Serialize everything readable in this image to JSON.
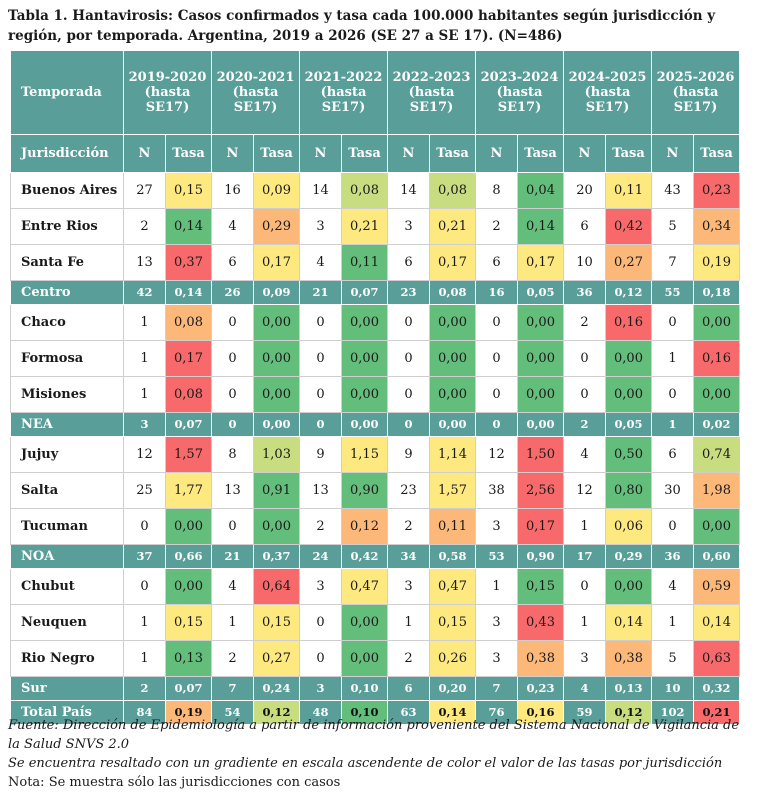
{
  "title": "Tabla 1. Hantavirosis: Casos confirmados y tasa cada 100.000 habitantes según jurisdicción y región, por temporada. Argentina, 2019 a 2026 (SE 27 a SE 17). (N=486)",
  "header": {
    "temporada_label": "Temporada",
    "seasons": [
      "2019-2020 (hasta SE17)",
      "2020-2021 (hasta SE17)",
      "2021-2022 (hasta SE17)",
      "2022-2023 (hasta SE17)",
      "2023-2024 (hasta SE17)",
      "2024-2025 (hasta SE17)",
      "2025-2026 (hasta SE17)"
    ],
    "jurisdiccion_label": "Jurisdicción",
    "n_label": "N",
    "tasa_label": "Tasa"
  },
  "colors": {
    "header_teal": "#5a9e9a",
    "scale_green": "#63be7b",
    "scale_lightgreen": "#c8dd7f",
    "scale_yellow": "#fde980",
    "scale_orange": "#fbb878",
    "scale_red": "#f8696b"
  },
  "rows": [
    {
      "type": "juris",
      "name": "Buenos Aires",
      "cells": [
        [
          "27",
          "0,15",
          "yellow"
        ],
        [
          "16",
          "0,09",
          "yellow"
        ],
        [
          "14",
          "0,08",
          "lightgreen"
        ],
        [
          "14",
          "0,08",
          "lightgreen"
        ],
        [
          "8",
          "0,04",
          "green"
        ],
        [
          "20",
          "0,11",
          "yellow"
        ],
        [
          "43",
          "0,23",
          "red"
        ]
      ]
    },
    {
      "type": "juris",
      "name": "Entre Rios",
      "cells": [
        [
          "2",
          "0,14",
          "green"
        ],
        [
          "4",
          "0,29",
          "orange"
        ],
        [
          "3",
          "0,21",
          "yellow"
        ],
        [
          "3",
          "0,21",
          "yellow"
        ],
        [
          "2",
          "0,14",
          "green"
        ],
        [
          "6",
          "0,42",
          "red"
        ],
        [
          "5",
          "0,34",
          "orange"
        ]
      ]
    },
    {
      "type": "juris",
      "name": "Santa Fe",
      "cells": [
        [
          "13",
          "0,37",
          "red"
        ],
        [
          "6",
          "0,17",
          "yellow"
        ],
        [
          "4",
          "0,11",
          "green"
        ],
        [
          "6",
          "0,17",
          "yellow"
        ],
        [
          "6",
          "0,17",
          "yellow"
        ],
        [
          "10",
          "0,27",
          "orange"
        ],
        [
          "7",
          "0,19",
          "yellow"
        ]
      ]
    },
    {
      "type": "region",
      "name": "Centro",
      "cells": [
        [
          "42",
          "0,14"
        ],
        [
          "26",
          "0,09"
        ],
        [
          "21",
          "0,07"
        ],
        [
          "23",
          "0,08"
        ],
        [
          "16",
          "0,05"
        ],
        [
          "36",
          "0,12"
        ],
        [
          "55",
          "0,18"
        ]
      ]
    },
    {
      "type": "juris",
      "name": "Chaco",
      "cells": [
        [
          "1",
          "0,08",
          "orange"
        ],
        [
          "0",
          "0,00",
          "green"
        ],
        [
          "0",
          "0,00",
          "green"
        ],
        [
          "0",
          "0,00",
          "green"
        ],
        [
          "0",
          "0,00",
          "green"
        ],
        [
          "2",
          "0,16",
          "red"
        ],
        [
          "0",
          "0,00",
          "green"
        ]
      ]
    },
    {
      "type": "juris",
      "name": "Formosa",
      "cells": [
        [
          "1",
          "0,17",
          "red"
        ],
        [
          "0",
          "0,00",
          "green"
        ],
        [
          "0",
          "0,00",
          "green"
        ],
        [
          "0",
          "0,00",
          "green"
        ],
        [
          "0",
          "0,00",
          "green"
        ],
        [
          "0",
          "0,00",
          "green"
        ],
        [
          "1",
          "0,16",
          "red"
        ]
      ]
    },
    {
      "type": "juris",
      "name": "Misiones",
      "cells": [
        [
          "1",
          "0,08",
          "red"
        ],
        [
          "0",
          "0,00",
          "green"
        ],
        [
          "0",
          "0,00",
          "green"
        ],
        [
          "0",
          "0,00",
          "green"
        ],
        [
          "0",
          "0,00",
          "green"
        ],
        [
          "0",
          "0,00",
          "green"
        ],
        [
          "0",
          "0,00",
          "green"
        ]
      ]
    },
    {
      "type": "region",
      "name": "NEA",
      "cells": [
        [
          "3",
          "0,07"
        ],
        [
          "0",
          "0,00"
        ],
        [
          "0",
          "0,00"
        ],
        [
          "0",
          "0,00"
        ],
        [
          "0",
          "0,00"
        ],
        [
          "2",
          "0,05"
        ],
        [
          "1",
          "0,02"
        ]
      ]
    },
    {
      "type": "juris",
      "name": "Jujuy",
      "cells": [
        [
          "12",
          "1,57",
          "red"
        ],
        [
          "8",
          "1,03",
          "lightgreen"
        ],
        [
          "9",
          "1,15",
          "yellow"
        ],
        [
          "9",
          "1,14",
          "yellow"
        ],
        [
          "12",
          "1,50",
          "red"
        ],
        [
          "4",
          "0,50",
          "green"
        ],
        [
          "6",
          "0,74",
          "lightgreen"
        ]
      ]
    },
    {
      "type": "juris",
      "name": "Salta",
      "cells": [
        [
          "25",
          "1,77",
          "yellow"
        ],
        [
          "13",
          "0,91",
          "green"
        ],
        [
          "13",
          "0,90",
          "green"
        ],
        [
          "23",
          "1,57",
          "yellow"
        ],
        [
          "38",
          "2,56",
          "red"
        ],
        [
          "12",
          "0,80",
          "green"
        ],
        [
          "30",
          "1,98",
          "orange"
        ]
      ]
    },
    {
      "type": "juris",
      "name": "Tucuman",
      "cells": [
        [
          "0",
          "0,00",
          "green"
        ],
        [
          "0",
          "0,00",
          "green"
        ],
        [
          "2",
          "0,12",
          "orange"
        ],
        [
          "2",
          "0,11",
          "orange"
        ],
        [
          "3",
          "0,17",
          "red"
        ],
        [
          "1",
          "0,06",
          "yellow"
        ],
        [
          "0",
          "0,00",
          "green"
        ]
      ]
    },
    {
      "type": "region",
      "name": "NOA",
      "cells": [
        [
          "37",
          "0,66"
        ],
        [
          "21",
          "0,37"
        ],
        [
          "24",
          "0,42"
        ],
        [
          "34",
          "0,58"
        ],
        [
          "53",
          "0,90"
        ],
        [
          "17",
          "0,29"
        ],
        [
          "36",
          "0,60"
        ]
      ]
    },
    {
      "type": "juris",
      "name": "Chubut",
      "cells": [
        [
          "0",
          "0,00",
          "green"
        ],
        [
          "4",
          "0,64",
          "red"
        ],
        [
          "3",
          "0,47",
          "yellow"
        ],
        [
          "3",
          "0,47",
          "yellow"
        ],
        [
          "1",
          "0,15",
          "green"
        ],
        [
          "0",
          "0,00",
          "green"
        ],
        [
          "4",
          "0,59",
          "orange"
        ]
      ]
    },
    {
      "type": "juris",
      "name": "Neuquen",
      "cells": [
        [
          "1",
          "0,15",
          "yellow"
        ],
        [
          "1",
          "0,15",
          "yellow"
        ],
        [
          "0",
          "0,00",
          "green"
        ],
        [
          "1",
          "0,15",
          "yellow"
        ],
        [
          "3",
          "0,43",
          "red"
        ],
        [
          "1",
          "0,14",
          "yellow"
        ],
        [
          "1",
          "0,14",
          "yellow"
        ]
      ]
    },
    {
      "type": "juris",
      "name": "Rio Negro",
      "cells": [
        [
          "1",
          "0,13",
          "green"
        ],
        [
          "2",
          "0,27",
          "yellow"
        ],
        [
          "0",
          "0,00",
          "green"
        ],
        [
          "2",
          "0,26",
          "yellow"
        ],
        [
          "3",
          "0,38",
          "orange"
        ],
        [
          "3",
          "0,38",
          "orange"
        ],
        [
          "5",
          "0,63",
          "red"
        ]
      ]
    },
    {
      "type": "region",
      "name": "Sur",
      "cells": [
        [
          "2",
          "0,07"
        ],
        [
          "7",
          "0,24"
        ],
        [
          "3",
          "0,10"
        ],
        [
          "6",
          "0,20"
        ],
        [
          "7",
          "0,23"
        ],
        [
          "4",
          "0,13"
        ],
        [
          "10",
          "0,32"
        ]
      ]
    },
    {
      "type": "total",
      "name": "Total País",
      "cells": [
        [
          "84",
          "0,19",
          "orange"
        ],
        [
          "54",
          "0,12",
          "lightgreen"
        ],
        [
          "48",
          "0,10",
          "green"
        ],
        [
          "63",
          "0,14",
          "yellow"
        ],
        [
          "76",
          "0,16",
          "yellow"
        ],
        [
          "59",
          "0,12",
          "lightgreen"
        ],
        [
          "102",
          "0,21",
          "red"
        ]
      ]
    }
  ],
  "notes": {
    "source": "Fuente: Dirección de Epidemiología a partir de información proveniente del Sistema Nacional de Vigilancia de la Salud SNVS 2.0",
    "note1": "Se encuentra resaltado con un gradiente en escala ascendente de color el valor de las tasas por jurisdicción",
    "note2": "Nota: Se muestra sólo las jurisdicciones con casos"
  }
}
